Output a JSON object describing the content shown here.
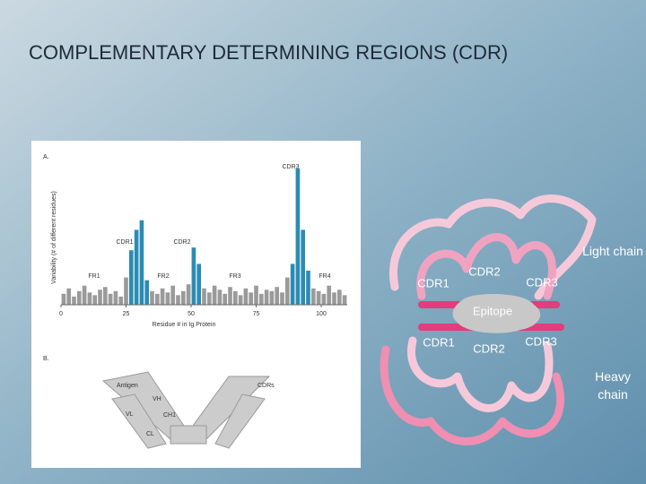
{
  "header": {
    "title": "COMPLEMENTARY DETERMINING REGIONS (CDR)"
  },
  "figure": {
    "panel_a": {
      "label": "A.",
      "type": "bar",
      "y_label": "Variability (# of different residues)",
      "x_label": "Residue # in Ig Protein",
      "xlim": [
        0,
        110
      ],
      "ylim": [
        0,
        100
      ],
      "xticks": [
        0,
        25,
        50,
        75,
        100
      ],
      "x": [
        1,
        3,
        5,
        7,
        9,
        11,
        13,
        15,
        17,
        19,
        21,
        23,
        25,
        27,
        29,
        31,
        33,
        35,
        37,
        39,
        41,
        43,
        45,
        47,
        49,
        51,
        53,
        55,
        57,
        59,
        61,
        63,
        65,
        67,
        69,
        71,
        73,
        75,
        77,
        79,
        81,
        83,
        85,
        87,
        89,
        91,
        93,
        95,
        97,
        99,
        101,
        103,
        105,
        107,
        109
      ],
      "values": [
        8,
        12,
        6,
        10,
        14,
        9,
        7,
        11,
        13,
        8,
        10,
        6,
        20,
        40,
        55,
        62,
        18,
        10,
        8,
        12,
        9,
        14,
        7,
        10,
        15,
        42,
        30,
        12,
        9,
        14,
        11,
        8,
        13,
        10,
        7,
        12,
        9,
        14,
        8,
        11,
        10,
        13,
        9,
        20,
        30,
        100,
        55,
        25,
        12,
        10,
        8,
        14,
        9,
        11,
        7
      ],
      "colors": [
        "#9a9a9a",
        "#9a9a9a",
        "#9a9a9a",
        "#9a9a9a",
        "#9a9a9a",
        "#9a9a9a",
        "#9a9a9a",
        "#9a9a9a",
        "#9a9a9a",
        "#9a9a9a",
        "#9a9a9a",
        "#9a9a9a",
        "#9a9a9a",
        "#2b8cb3",
        "#2b8cb3",
        "#2b8cb3",
        "#2b8cb3",
        "#9a9a9a",
        "#9a9a9a",
        "#9a9a9a",
        "#9a9a9a",
        "#9a9a9a",
        "#9a9a9a",
        "#9a9a9a",
        "#9a9a9a",
        "#2b8cb3",
        "#2b8cb3",
        "#9a9a9a",
        "#9a9a9a",
        "#9a9a9a",
        "#9a9a9a",
        "#9a9a9a",
        "#9a9a9a",
        "#9a9a9a",
        "#9a9a9a",
        "#9a9a9a",
        "#9a9a9a",
        "#9a9a9a",
        "#9a9a9a",
        "#9a9a9a",
        "#9a9a9a",
        "#9a9a9a",
        "#9a9a9a",
        "#9a9a9a",
        "#2b8cb3",
        "#2b8cb3",
        "#2b8cb3",
        "#2b8cb3",
        "#9a9a9a",
        "#9a9a9a",
        "#9a9a9a",
        "#9a9a9a",
        "#9a9a9a",
        "#9a9a9a",
        "#9a9a9a"
      ],
      "region_labels": [
        "CDR1",
        "CDR2",
        "CDR3",
        "FR1",
        "FR2",
        "FR3",
        "FR4"
      ]
    },
    "panel_b": {
      "label": "B.",
      "labels": [
        "Antigen",
        "VH",
        "VL",
        "CH1",
        "CL",
        "CDRs"
      ]
    }
  },
  "diagram": {
    "light_labels": [
      "CDR1",
      "CDR2",
      "CDR3"
    ],
    "light_chain": "Light chain",
    "epitope": "Epitope",
    "heavy_labels": [
      "CDR1",
      "CDR2",
      "CDR3"
    ],
    "heavy_chain": "Heavy chain"
  }
}
